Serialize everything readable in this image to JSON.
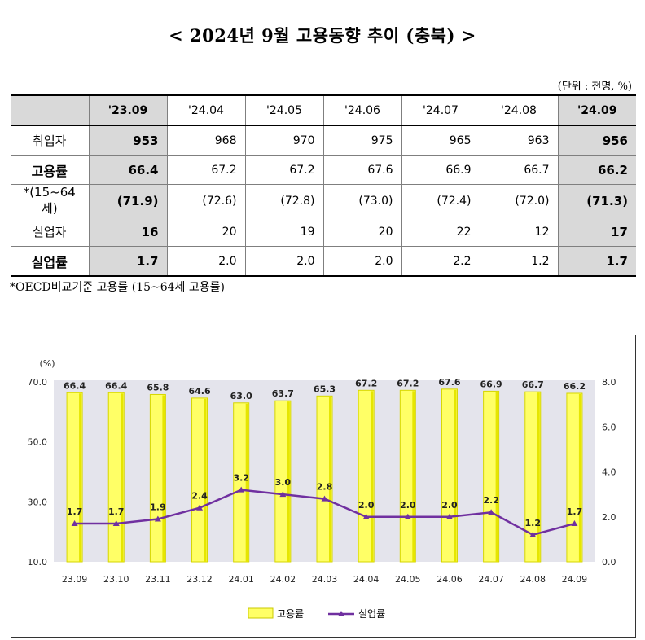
{
  "title": "< 2024년 9월 고용동향 추이 (충북) >",
  "unit_note": "(단위 : 천명, %)",
  "table": {
    "headers": [
      "'23.09",
      "'24.04",
      "'24.05",
      "'24.06",
      "'24.07",
      "'24.08",
      "'24.09"
    ],
    "rows": [
      {
        "label": "취업자",
        "bold": false,
        "values": [
          "953",
          "968",
          "970",
          "975",
          "965",
          "963",
          "956"
        ]
      },
      {
        "label": "고용률",
        "bold": true,
        "values": [
          "66.4",
          "67.2",
          "67.2",
          "67.6",
          "66.9",
          "66.7",
          "66.2"
        ]
      },
      {
        "label": "*(15~64세)",
        "bold": false,
        "values": [
          "(71.9)",
          "(72.6)",
          "(72.8)",
          "(73.0)",
          "(72.4)",
          "(72.0)",
          "(71.3)"
        ]
      },
      {
        "label": "실업자",
        "bold": false,
        "values": [
          "16",
          "20",
          "19",
          "20",
          "22",
          "12",
          "17"
        ]
      },
      {
        "label": "실업률",
        "bold": true,
        "values": [
          "1.7",
          "2.0",
          "2.0",
          "2.0",
          "2.2",
          "1.2",
          "1.7"
        ]
      }
    ]
  },
  "footnote": "*OECD비교기준 고용률 (15~64세 고용률)",
  "chart_data": {
    "type": "bar",
    "categories": [
      "23.09",
      "23.10",
      "23.11",
      "23.12",
      "24.01",
      "24.02",
      "24.03",
      "24.04",
      "24.05",
      "24.06",
      "24.07",
      "24.08",
      "24.09"
    ],
    "series": [
      {
        "name": "고용률",
        "type": "bar",
        "axis": "left",
        "color": "#ffff66",
        "values": [
          66.4,
          66.4,
          65.8,
          64.6,
          63.0,
          63.7,
          65.3,
          67.2,
          67.2,
          67.6,
          66.9,
          66.7,
          66.2
        ]
      },
      {
        "name": "실업률",
        "type": "line",
        "axis": "right",
        "color": "#7030a0",
        "values": [
          1.7,
          1.7,
          1.9,
          2.4,
          3.2,
          3.0,
          2.8,
          2.0,
          2.0,
          2.0,
          2.2,
          1.2,
          1.7
        ]
      }
    ],
    "ylabel": "(%)",
    "ylim": [
      10,
      70
    ],
    "y_ticks": [
      "10.0",
      "30.0",
      "50.0",
      "70.0"
    ],
    "y2lim": [
      0,
      8
    ],
    "y2_ticks": [
      "0.0",
      "2.0",
      "4.0",
      "6.0",
      "8.0"
    ],
    "background": "#e4e4ec",
    "legend": "bottom"
  }
}
